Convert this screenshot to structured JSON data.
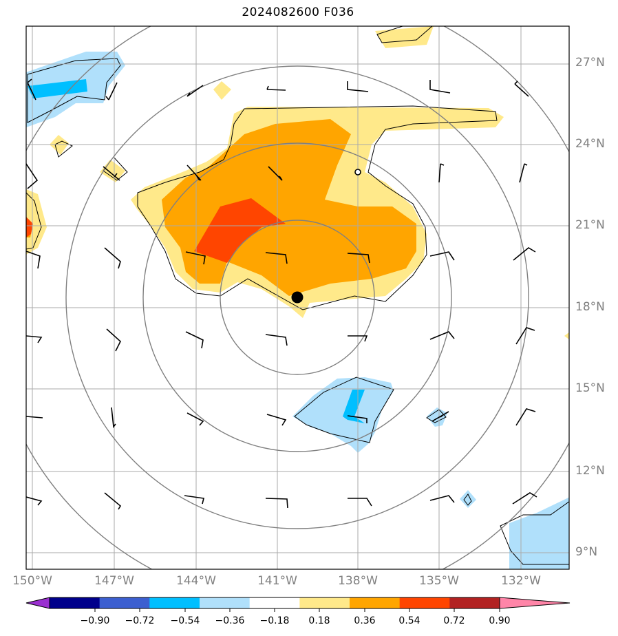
{
  "title": "2024082600 F036",
  "map": {
    "lat_labels": [
      "27°N",
      "24°N",
      "21°N",
      "18°N",
      "15°N",
      "12°N",
      "9°N"
    ],
    "lon_labels": [
      "150°W",
      "147°W",
      "144°W",
      "141°W",
      "138°W",
      "135°W",
      "132°W"
    ],
    "field_legend": {
      "levels": [
        -0.9,
        -0.72,
        -0.54,
        -0.36,
        -0.18,
        0.18,
        0.36,
        0.54,
        0.72,
        0.9
      ],
      "level_labels": [
        "−0.90",
        "−0.72",
        "−0.54",
        "−0.36",
        "−0.18",
        "0.18",
        "0.36",
        "0.54",
        "0.72",
        "0.90"
      ],
      "colors": [
        "#9a30d0",
        "#00008b",
        "#3c5fd0",
        "#00bfff",
        "#b0e0fb",
        "#ffffff",
        "#ffe98a",
        "#ffa500",
        "#ff4500",
        "#b22222",
        "#ff85a8"
      ]
    },
    "markers": [
      {
        "name": "storm-center",
        "type": "filled-dot",
        "lon": -140.3,
        "lat": 18.4
      },
      {
        "name": "reference-point",
        "type": "open-circle",
        "lon": -138.0,
        "lat": 22.9
      }
    ]
  }
}
